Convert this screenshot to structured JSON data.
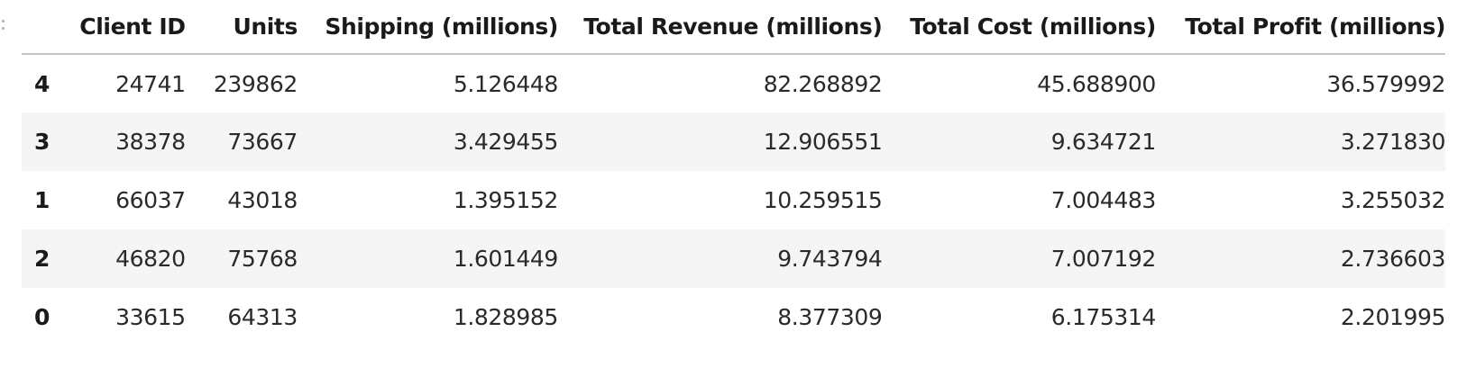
{
  "table": {
    "index_header": "",
    "columns": [
      "Client ID",
      "Units",
      "Shipping (millions)",
      "Total Revenue (millions)",
      "Total Cost (millions)",
      "Total Profit (millions)"
    ],
    "rows": [
      {
        "index": "4",
        "cells": [
          "24741",
          "239862",
          "5.126448",
          "82.268892",
          "45.688900",
          "36.579992"
        ]
      },
      {
        "index": "3",
        "cells": [
          "38378",
          "73667",
          "3.429455",
          "12.906551",
          "9.634721",
          "3.271830"
        ]
      },
      {
        "index": "1",
        "cells": [
          "66037",
          "43018",
          "1.395152",
          "10.259515",
          "7.004483",
          "3.255032"
        ]
      },
      {
        "index": "2",
        "cells": [
          "46820",
          "75768",
          "1.601449",
          "9.743794",
          "7.007192",
          "2.736603"
        ]
      },
      {
        "index": "0",
        "cells": [
          "33615",
          "64313",
          "1.828985",
          "8.377309",
          "6.175314",
          "2.201995"
        ]
      }
    ]
  }
}
